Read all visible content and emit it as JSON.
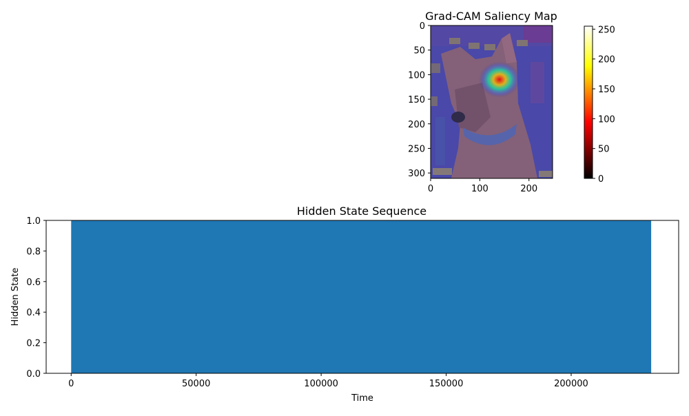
{
  "figure": {
    "background": "#ffffff"
  },
  "chart_data": [
    {
      "type": "heatmap",
      "title": "Grad-CAM Saliency Map",
      "xlabel": "",
      "ylabel": "",
      "image_extent": {
        "x": [
          0,
          248
        ],
        "y": [
          0,
          311
        ]
      },
      "y_inverted": true,
      "xticks": [
        0,
        100,
        200
      ],
      "yticks": [
        0,
        50,
        100,
        150,
        200,
        250,
        300
      ],
      "colormap": "hot",
      "colorbar": {
        "range": [
          0,
          255
        ],
        "ticks": [
          0,
          50,
          100,
          150,
          200,
          250
        ]
      },
      "overlay_colormap": "jet",
      "hotspot": {
        "x": 140,
        "y": 110,
        "peak": 255
      },
      "image_subject": "dog",
      "colors": {
        "background_overlay": "#4a4ab0",
        "dog_fur": "#9a6a6a",
        "hot_core": "#ff2a00",
        "hot_ring": "#ffd400"
      }
    },
    {
      "type": "area",
      "title": "Hidden State Sequence",
      "xlabel": "Time",
      "ylabel": "Hidden State",
      "xlim": [
        -10000,
        243000
      ],
      "ylim": [
        0,
        1
      ],
      "xticks": [
        0,
        50000,
        100000,
        150000,
        200000
      ],
      "yticks": [
        0.0,
        0.2,
        0.4,
        0.6,
        0.8,
        1.0
      ],
      "ytick_labels": [
        "0.0",
        "0.2",
        "0.4",
        "0.6",
        "0.8",
        "1.0"
      ],
      "series": [
        {
          "x_start": 0,
          "x_end": 232000,
          "value": 1.0,
          "color": "#1f77b4"
        }
      ],
      "grid": false
    }
  ]
}
